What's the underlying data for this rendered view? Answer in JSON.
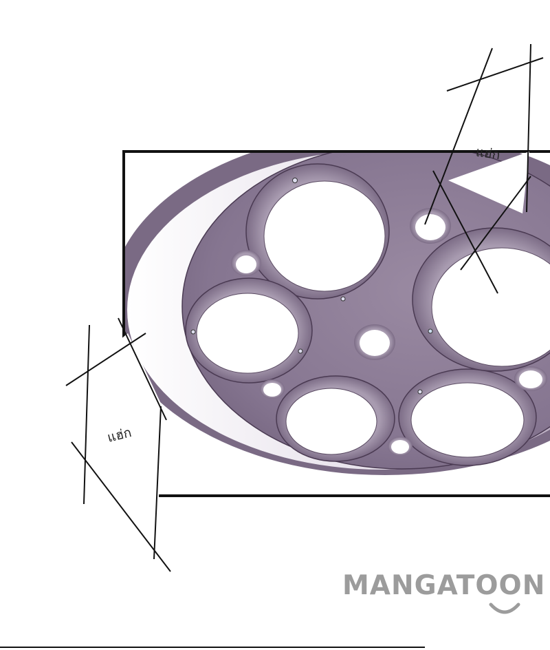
{
  "sfx": {
    "top": "แฮ่ก",
    "bottom": "แฮ่ก"
  },
  "watermark": {
    "text": "MANGATOON"
  },
  "colors": {
    "lamp_base": "#8a7a92",
    "lamp_dark": "#6a5a72",
    "lamp_outline": "#4a3a52",
    "hole": "#ffffff",
    "panel_border": "#111111",
    "watermark": "#9c9c9c"
  }
}
